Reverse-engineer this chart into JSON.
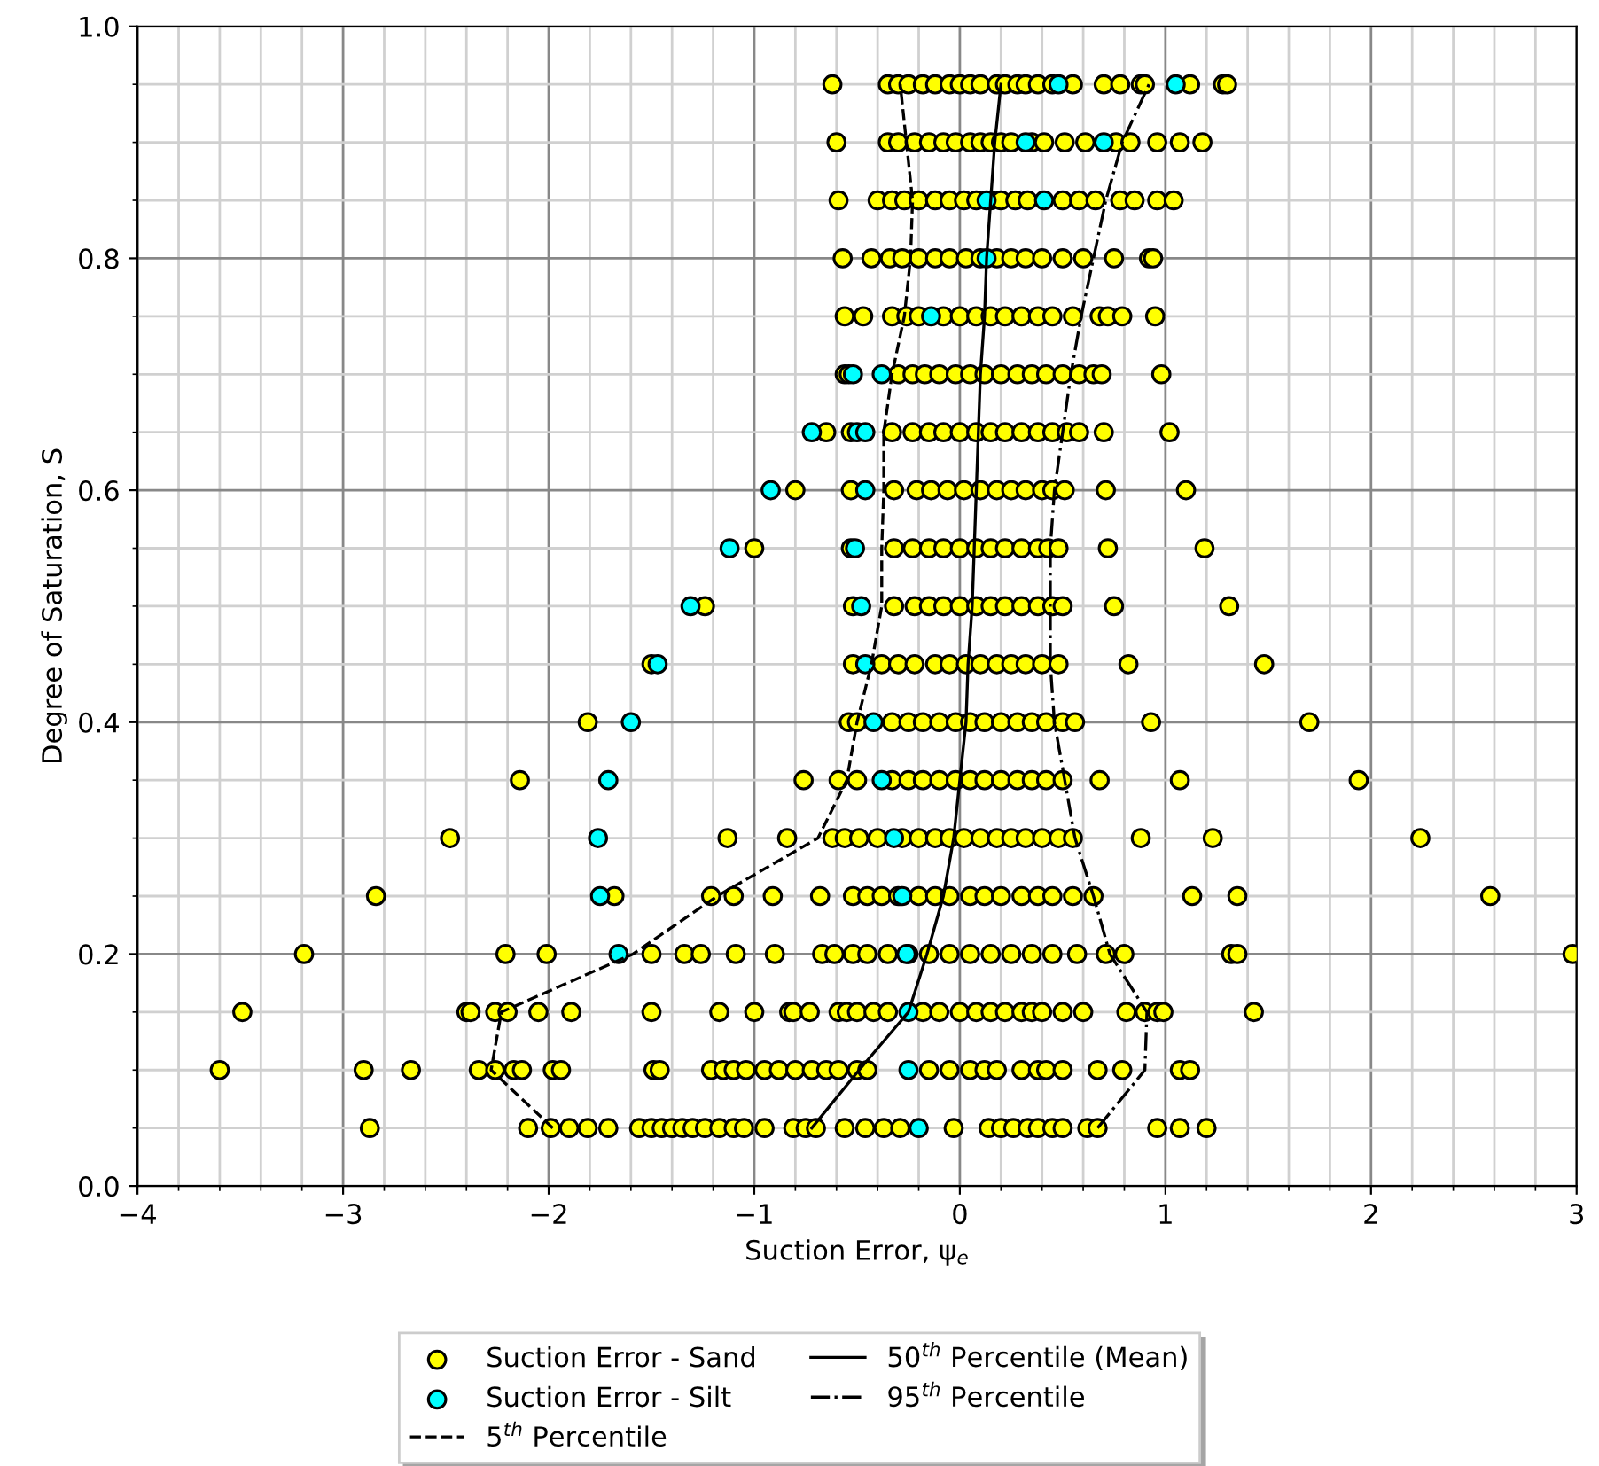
{
  "chart_data": {
    "type": "scatter",
    "xlabel": "Suction Error, ψ$_{e}$",
    "ylabel": "Degree of Saturation, S",
    "xlim": [
      -4,
      3
    ],
    "xticks": [
      {
        "value": -4,
        "label": "−4"
      },
      {
        "value": -3,
        "label": "−3"
      },
      {
        "value": -2,
        "label": "−2"
      },
      {
        "value": -1,
        "label": "−1"
      },
      0,
      1,
      2,
      3
    ],
    "ylim": [
      0,
      1
    ],
    "yticks": [
      {
        "value": 0,
        "label": "0.0"
      },
      0.2,
      0.4,
      0.6,
      0.8,
      {
        "value": 1,
        "label": "1.0"
      }
    ],
    "grid": true,
    "legend": "bottom",
    "marker": "circle",
    "series": [
      {
        "name": "Suction Error - Sand",
        "color": "#ffff00",
        "x": [
          -0.62,
          -0.35,
          -0.3,
          -0.25,
          -0.18,
          -0.12,
          -0.05,
          0.0,
          0.05,
          0.1,
          0.18,
          0.22,
          0.28,
          0.32,
          0.38,
          0.45,
          0.55,
          0.7,
          0.78,
          0.88,
          0.9,
          1.12,
          1.28,
          1.3,
          -0.6,
          -0.35,
          -0.3,
          -0.22,
          -0.15,
          -0.08,
          -0.02,
          0.05,
          0.1,
          0.15,
          0.2,
          0.25,
          0.35,
          0.41,
          0.51,
          0.61,
          0.76,
          0.83,
          0.96,
          1.07,
          1.18,
          -0.59,
          -0.4,
          -0.33,
          -0.27,
          -0.2,
          -0.12,
          -0.05,
          0.02,
          0.08,
          0.15,
          0.2,
          0.27,
          0.33,
          0.5,
          0.58,
          0.66,
          0.78,
          0.85,
          0.96,
          1.04,
          -0.57,
          -0.43,
          -0.34,
          -0.28,
          -0.2,
          -0.12,
          -0.05,
          0.03,
          0.1,
          0.18,
          0.25,
          0.32,
          0.4,
          0.5,
          0.6,
          0.75,
          0.92,
          0.94,
          -0.56,
          -0.47,
          -0.33,
          -0.26,
          -0.2,
          -0.08,
          0.0,
          0.08,
          0.15,
          0.22,
          0.3,
          0.38,
          0.45,
          0.55,
          0.68,
          0.72,
          0.79,
          0.95,
          -0.56,
          -0.54,
          -0.3,
          -0.23,
          -0.17,
          -0.1,
          -0.02,
          0.05,
          0.12,
          0.2,
          0.28,
          0.35,
          0.42,
          0.5,
          0.58,
          0.65,
          0.69,
          0.98,
          -0.65,
          -0.53,
          -0.33,
          -0.23,
          -0.15,
          -0.08,
          0.0,
          0.08,
          0.15,
          0.22,
          0.3,
          0.38,
          0.45,
          0.52,
          0.58,
          0.7,
          1.02,
          -0.8,
          -0.53,
          -0.32,
          -0.21,
          -0.14,
          -0.06,
          0.02,
          0.1,
          0.18,
          0.25,
          0.32,
          0.4,
          0.45,
          0.51,
          0.71,
          1.1,
          -1.0,
          -0.53,
          -0.32,
          -0.23,
          -0.15,
          -0.08,
          0.0,
          0.08,
          0.15,
          0.22,
          0.3,
          0.38,
          0.43,
          0.48,
          0.72,
          1.19,
          -1.24,
          -0.52,
          -0.32,
          -0.22,
          -0.15,
          -0.08,
          0.0,
          0.08,
          0.15,
          0.22,
          0.3,
          0.38,
          0.45,
          0.5,
          0.75,
          1.31,
          -1.5,
          -0.52,
          -0.38,
          -0.3,
          -0.22,
          -0.12,
          -0.05,
          0.03,
          0.1,
          0.18,
          0.25,
          0.32,
          0.4,
          0.48,
          0.82,
          1.48,
          -1.81,
          -0.54,
          -0.5,
          -0.33,
          -0.25,
          -0.18,
          -0.1,
          -0.02,
          0.05,
          0.12,
          0.2,
          0.28,
          0.35,
          0.42,
          0.5,
          0.56,
          0.93,
          1.7,
          -2.14,
          -0.76,
          -0.59,
          -0.5,
          -0.33,
          -0.25,
          -0.18,
          -0.1,
          -0.02,
          0.05,
          0.12,
          0.2,
          0.28,
          0.35,
          0.42,
          0.5,
          0.68,
          1.07,
          1.94,
          -2.48,
          -1.13,
          -0.84,
          -0.62,
          -0.56,
          -0.49,
          -0.4,
          -0.28,
          -0.2,
          -0.12,
          -0.05,
          0.02,
          0.1,
          0.18,
          0.25,
          0.32,
          0.4,
          0.48,
          0.55,
          0.88,
          1.23,
          2.24,
          -2.84,
          -1.68,
          -1.21,
          -1.1,
          -0.91,
          -0.68,
          -0.52,
          -0.45,
          -0.38,
          -0.3,
          -0.2,
          -0.12,
          -0.05,
          0.05,
          0.12,
          0.2,
          0.3,
          0.38,
          0.45,
          0.55,
          0.65,
          1.13,
          1.35,
          2.58,
          -3.19,
          -2.21,
          -2.01,
          -1.5,
          -1.34,
          -1.26,
          -1.09,
          -0.9,
          -0.67,
          -0.61,
          -0.52,
          -0.45,
          -0.35,
          -0.25,
          -0.15,
          -0.05,
          0.05,
          0.15,
          0.25,
          0.35,
          0.45,
          0.57,
          0.71,
          0.8,
          1.32,
          1.35,
          2.98,
          -3.49,
          -2.4,
          -2.38,
          -2.26,
          -2.2,
          -2.05,
          -1.89,
          -1.5,
          -1.17,
          -1.0,
          -0.83,
          -0.81,
          -0.73,
          -0.59,
          -0.55,
          -0.5,
          -0.42,
          -0.35,
          -0.18,
          -0.1,
          0.0,
          0.08,
          0.15,
          0.22,
          0.3,
          0.35,
          0.4,
          0.5,
          0.6,
          0.81,
          0.9,
          0.96,
          0.99,
          1.43,
          -3.6,
          -2.9,
          -2.67,
          -2.34,
          -2.26,
          -2.17,
          -2.13,
          -1.98,
          -1.94,
          -1.49,
          -1.46,
          -1.21,
          -1.15,
          -1.1,
          -1.04,
          -0.95,
          -0.88,
          -0.8,
          -0.72,
          -0.65,
          -0.59,
          -0.5,
          -0.45,
          -0.15,
          -0.05,
          0.05,
          0.12,
          0.18,
          0.3,
          0.38,
          0.42,
          0.5,
          0.67,
          0.79,
          1.07,
          1.12,
          -2.87,
          -2.1,
          -1.99,
          -1.9,
          -1.81,
          -1.71,
          -1.56,
          -1.5,
          -1.45,
          -1.4,
          -1.35,
          -1.3,
          -1.24,
          -1.17,
          -1.1,
          -1.05,
          -0.95,
          -0.81,
          -0.75,
          -0.7,
          -0.56,
          -0.46,
          -0.37,
          -0.29,
          -0.03,
          0.14,
          0.2,
          0.26,
          0.33,
          0.38,
          0.45,
          0.5,
          0.62,
          0.67,
          0.96,
          1.07,
          1.2
        ],
        "values": [
          0.95,
          0.95,
          0.95,
          0.95,
          0.95,
          0.95,
          0.95,
          0.95,
          0.95,
          0.95,
          0.95,
          0.95,
          0.95,
          0.95,
          0.95,
          0.95,
          0.95,
          0.95,
          0.95,
          0.95,
          0.95,
          0.95,
          0.95,
          0.95,
          0.9,
          0.9,
          0.9,
          0.9,
          0.9,
          0.9,
          0.9,
          0.9,
          0.9,
          0.9,
          0.9,
          0.9,
          0.9,
          0.9,
          0.9,
          0.9,
          0.9,
          0.9,
          0.9,
          0.9,
          0.9,
          0.85,
          0.85,
          0.85,
          0.85,
          0.85,
          0.85,
          0.85,
          0.85,
          0.85,
          0.85,
          0.85,
          0.85,
          0.85,
          0.85,
          0.85,
          0.85,
          0.85,
          0.85,
          0.85,
          0.85,
          0.8,
          0.8,
          0.8,
          0.8,
          0.8,
          0.8,
          0.8,
          0.8,
          0.8,
          0.8,
          0.8,
          0.8,
          0.8,
          0.8,
          0.8,
          0.8,
          0.8,
          0.8,
          0.75,
          0.75,
          0.75,
          0.75,
          0.75,
          0.75,
          0.75,
          0.75,
          0.75,
          0.75,
          0.75,
          0.75,
          0.75,
          0.75,
          0.75,
          0.75,
          0.75,
          0.75,
          0.7,
          0.7,
          0.7,
          0.7,
          0.7,
          0.7,
          0.7,
          0.7,
          0.7,
          0.7,
          0.7,
          0.7,
          0.7,
          0.7,
          0.7,
          0.7,
          0.7,
          0.7,
          0.65,
          0.65,
          0.65,
          0.65,
          0.65,
          0.65,
          0.65,
          0.65,
          0.65,
          0.65,
          0.65,
          0.65,
          0.65,
          0.65,
          0.65,
          0.65,
          0.65,
          0.6,
          0.6,
          0.6,
          0.6,
          0.6,
          0.6,
          0.6,
          0.6,
          0.6,
          0.6,
          0.6,
          0.6,
          0.6,
          0.6,
          0.6,
          0.6,
          0.55,
          0.55,
          0.55,
          0.55,
          0.55,
          0.55,
          0.55,
          0.55,
          0.55,
          0.55,
          0.55,
          0.55,
          0.55,
          0.55,
          0.55,
          0.55,
          0.5,
          0.5,
          0.5,
          0.5,
          0.5,
          0.5,
          0.5,
          0.5,
          0.5,
          0.5,
          0.5,
          0.5,
          0.5,
          0.5,
          0.5,
          0.5,
          0.45,
          0.45,
          0.45,
          0.45,
          0.45,
          0.45,
          0.45,
          0.45,
          0.45,
          0.45,
          0.45,
          0.45,
          0.45,
          0.45,
          0.45,
          0.45,
          0.4,
          0.4,
          0.4,
          0.4,
          0.4,
          0.4,
          0.4,
          0.4,
          0.4,
          0.4,
          0.4,
          0.4,
          0.4,
          0.4,
          0.4,
          0.4,
          0.4,
          0.4,
          0.35,
          0.35,
          0.35,
          0.35,
          0.35,
          0.35,
          0.35,
          0.35,
          0.35,
          0.35,
          0.35,
          0.35,
          0.35,
          0.35,
          0.35,
          0.35,
          0.35,
          0.35,
          0.35,
          0.3,
          0.3,
          0.3,
          0.3,
          0.3,
          0.3,
          0.3,
          0.3,
          0.3,
          0.3,
          0.3,
          0.3,
          0.3,
          0.3,
          0.3,
          0.3,
          0.3,
          0.3,
          0.3,
          0.3,
          0.3,
          0.3,
          0.25,
          0.25,
          0.25,
          0.25,
          0.25,
          0.25,
          0.25,
          0.25,
          0.25,
          0.25,
          0.25,
          0.25,
          0.25,
          0.25,
          0.25,
          0.25,
          0.25,
          0.25,
          0.25,
          0.25,
          0.25,
          0.25,
          0.25,
          0.25,
          0.2,
          0.2,
          0.2,
          0.2,
          0.2,
          0.2,
          0.2,
          0.2,
          0.2,
          0.2,
          0.2,
          0.2,
          0.2,
          0.2,
          0.2,
          0.2,
          0.2,
          0.2,
          0.2,
          0.2,
          0.2,
          0.2,
          0.2,
          0.2,
          0.2,
          0.2,
          0.2,
          0.15,
          0.15,
          0.15,
          0.15,
          0.15,
          0.15,
          0.15,
          0.15,
          0.15,
          0.15,
          0.15,
          0.15,
          0.15,
          0.15,
          0.15,
          0.15,
          0.15,
          0.15,
          0.15,
          0.15,
          0.15,
          0.15,
          0.15,
          0.15,
          0.15,
          0.15,
          0.15,
          0.15,
          0.15,
          0.15,
          0.15,
          0.15,
          0.15,
          0.15,
          0.1,
          0.1,
          0.1,
          0.1,
          0.1,
          0.1,
          0.1,
          0.1,
          0.1,
          0.1,
          0.1,
          0.1,
          0.1,
          0.1,
          0.1,
          0.1,
          0.1,
          0.1,
          0.1,
          0.1,
          0.1,
          0.1,
          0.1,
          0.1,
          0.1,
          0.1,
          0.1,
          0.1,
          0.1,
          0.1,
          0.1,
          0.1,
          0.1,
          0.1,
          0.1,
          0.1,
          0.05,
          0.05,
          0.05,
          0.05,
          0.05,
          0.05,
          0.05,
          0.05,
          0.05,
          0.05,
          0.05,
          0.05,
          0.05,
          0.05,
          0.05,
          0.05,
          0.05,
          0.05,
          0.05,
          0.05,
          0.05,
          0.05,
          0.05,
          0.05,
          0.05,
          0.05,
          0.05,
          0.05,
          0.05,
          0.05,
          0.05,
          0.05,
          0.05,
          0.05,
          0.05,
          0.05,
          0.05
        ]
      },
      {
        "name": "Suction Error - Silt",
        "color": "#00ffff",
        "x": [
          0.48,
          1.05,
          0.32,
          0.7,
          0.13,
          0.41,
          0.13,
          -0.14,
          -0.52,
          -0.38,
          -0.72,
          -0.5,
          -0.46,
          -0.92,
          -0.46,
          -1.12,
          -0.51,
          -1.31,
          -0.48,
          -1.47,
          -0.46,
          -1.6,
          -0.42,
          -1.71,
          -0.38,
          -1.76,
          -0.32,
          -1.75,
          -0.28,
          -1.66,
          -0.26,
          -0.25,
          -0.25,
          -0.2
        ],
        "values": [
          0.95,
          0.95,
          0.9,
          0.9,
          0.85,
          0.85,
          0.8,
          0.75,
          0.7,
          0.7,
          0.65,
          0.65,
          0.65,
          0.6,
          0.6,
          0.55,
          0.55,
          0.5,
          0.5,
          0.45,
          0.45,
          0.4,
          0.4,
          0.35,
          0.35,
          0.3,
          0.3,
          0.25,
          0.25,
          0.2,
          0.2,
          0.15,
          0.1,
          0.05
        ]
      },
      {
        "name": "5$^{th}$ Percentile",
        "type": "line",
        "marker": "none",
        "line_style": "dashed",
        "color": "#000000",
        "x": [
          -1.98,
          -2.28,
          -2.23,
          -1.59,
          -1.18,
          -0.69,
          -0.55,
          -0.5,
          -0.43,
          -0.38,
          -0.38,
          -0.37,
          -0.37,
          -0.33,
          -0.27,
          -0.24,
          -0.23,
          -0.26,
          -0.29
        ],
        "values": [
          0.05,
          0.1,
          0.15,
          0.2,
          0.25,
          0.3,
          0.35,
          0.4,
          0.45,
          0.5,
          0.55,
          0.6,
          0.65,
          0.7,
          0.75,
          0.8,
          0.85,
          0.9,
          0.95
        ]
      },
      {
        "name": "50$^{th}$ Percentile (Mean)",
        "type": "line",
        "marker": "none",
        "line_style": "solid",
        "color": "#000000",
        "x": [
          -0.72,
          -0.49,
          -0.25,
          -0.16,
          -0.08,
          -0.03,
          0.0,
          0.03,
          0.04,
          0.06,
          0.07,
          0.08,
          0.09,
          0.1,
          0.12,
          0.13,
          0.15,
          0.17,
          0.2
        ],
        "values": [
          0.05,
          0.1,
          0.15,
          0.2,
          0.25,
          0.3,
          0.35,
          0.4,
          0.45,
          0.5,
          0.55,
          0.6,
          0.65,
          0.7,
          0.75,
          0.8,
          0.85,
          0.9,
          0.95
        ]
      },
      {
        "name": "95$^{th}$ Percentile",
        "type": "line",
        "marker": "none",
        "line_style": "dashdot",
        "color": "#000000",
        "x": [
          0.67,
          0.9,
          0.91,
          0.73,
          0.65,
          0.56,
          0.51,
          0.46,
          0.44,
          0.44,
          0.44,
          0.46,
          0.5,
          0.54,
          0.59,
          0.65,
          0.71,
          0.79,
          0.92
        ],
        "values": [
          0.05,
          0.1,
          0.15,
          0.2,
          0.25,
          0.3,
          0.35,
          0.4,
          0.45,
          0.5,
          0.55,
          0.6,
          0.65,
          0.7,
          0.75,
          0.8,
          0.85,
          0.9,
          0.95
        ]
      }
    ]
  }
}
